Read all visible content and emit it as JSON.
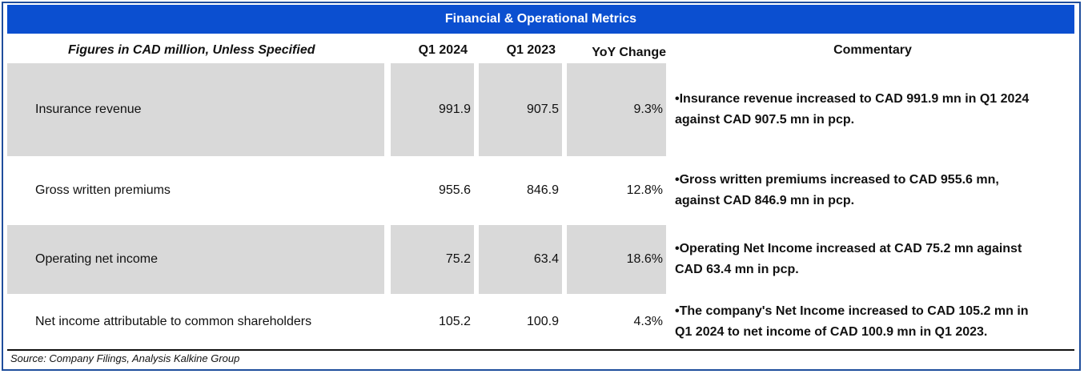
{
  "title": "Financial & Operational Metrics",
  "headers": {
    "figures": "Figures in CAD million, Unless Specified",
    "q1_2024": "Q1 2024",
    "q1_2023": "Q1 2023",
    "yoy": "YoY Change",
    "commentary": "Commentary"
  },
  "rows": [
    {
      "label": "Insurance revenue",
      "q1_2024": "991.9",
      "q1_2023": "907.5",
      "yoy": "9.3%",
      "commentary_line1": "•Insurance revenue increased to CAD 991.9 mn in Q1 2024",
      "commentary_line2": "against CAD 907.5 mn in pcp."
    },
    {
      "label": "Gross written premiums",
      "q1_2024": "955.6",
      "q1_2023": "846.9",
      "yoy": "12.8%",
      "commentary_line1": "•Gross written premiums increased to CAD 955.6 mn,",
      "commentary_line2": "against CAD 846.9 mn in pcp."
    },
    {
      "label": "Operating net income",
      "q1_2024": "75.2",
      "q1_2023": "63.4",
      "yoy": "18.6%",
      "commentary_line1": "•Operating Net Income increased  at CAD 75.2 mn against",
      "commentary_line2": "CAD 63.4 mn in pcp."
    },
    {
      "label": "Net income attributable to common shareholders",
      "q1_2024": "105.2",
      "q1_2023": "100.9",
      "yoy": "4.3%",
      "commentary_line1": "•The company's Net Income increased to CAD 105.2 mn in",
      "commentary_line2": "Q1 2024 to net income of CAD 100.9 mn in Q1 2023."
    }
  ],
  "source": "Source: Company Filings, Analysis Kalkine Group",
  "colors": {
    "title_bar": "#0b4fd0",
    "shade": "#d9d9d9",
    "border": "#1f4e9c"
  }
}
